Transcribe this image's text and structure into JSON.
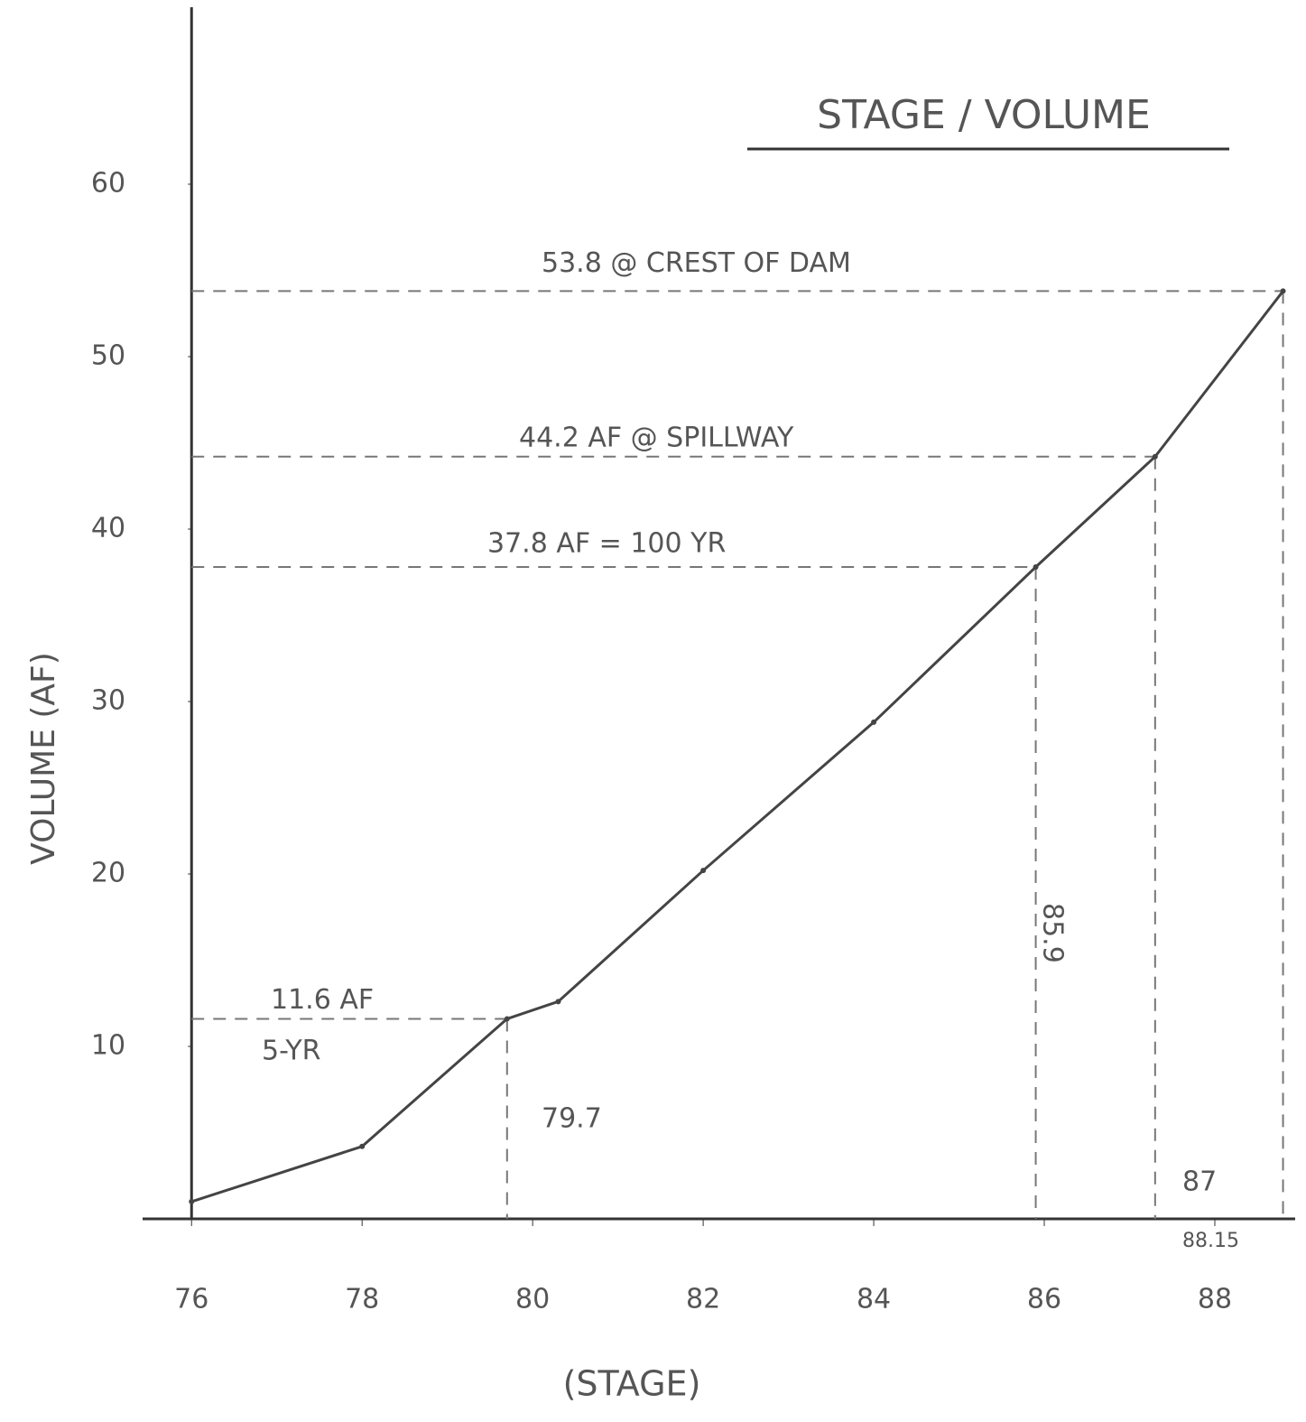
{
  "chart_data": {
    "type": "line",
    "title": "STAGE / VOLUME",
    "x_label": "(STAGE)",
    "y_label": "VOLUME (AF)",
    "x": [
      76,
      78,
      79.7,
      80.3,
      82,
      84,
      85.9,
      87.3,
      88.8
    ],
    "values": [
      1,
      4.2,
      11.6,
      12.6,
      20.2,
      28.8,
      37.8,
      44.2,
      53.8
    ],
    "color": "#444444",
    "xlim": [
      75.5,
      88.9
    ],
    "xticks": [
      76,
      78,
      80,
      82,
      84,
      86,
      88
    ],
    "ylim": [
      0,
      70
    ],
    "yticks": [
      10,
      20,
      30,
      40,
      50,
      60
    ],
    "hlines": [
      {
        "value": 53.8,
        "label": "53.8 @ CREST OF DAM"
      },
      {
        "value": 44.2,
        "label": "44.2 AF @ SPILLWAY"
      },
      {
        "value": 37.8,
        "label": "37.8 AF = 100 YR"
      },
      {
        "value": 11.6,
        "label": "11.6 AF"
      }
    ],
    "vlines": [
      {
        "value": 79.7,
        "label": "79.7"
      },
      {
        "value": 85.9,
        "label": "85.9"
      },
      {
        "value": 87.3
      },
      {
        "value": 88.8
      }
    ],
    "notes": [
      "5-YR",
      "87",
      "88.15"
    ]
  }
}
